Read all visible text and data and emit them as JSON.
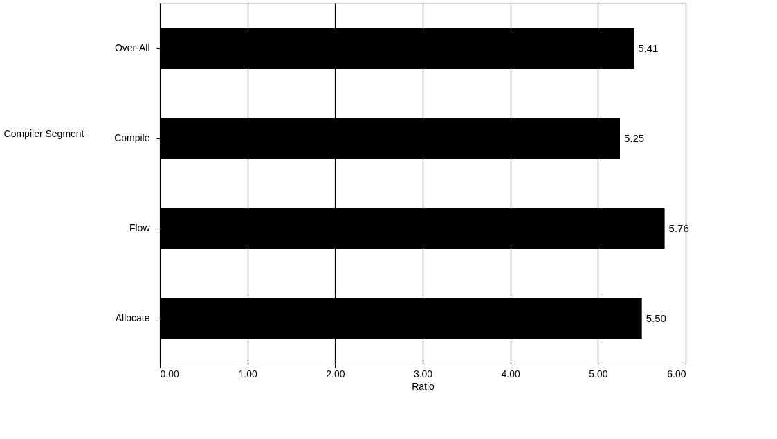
{
  "chart_data": {
    "type": "bar",
    "orientation": "horizontal",
    "xlabel": "Ratio",
    "ylabel": "Compiler Segment",
    "categories": [
      "Over-All",
      "Compile",
      "Flow",
      "Allocate"
    ],
    "values": [
      5.41,
      5.25,
      5.76,
      5.5
    ],
    "color": "#000000",
    "xlim": [
      0,
      6
    ],
    "xticks": [
      {
        "value": 0,
        "label": "0.00"
      },
      {
        "value": 1,
        "label": "1.00"
      },
      {
        "value": 2,
        "label": "2.00"
      },
      {
        "value": 3,
        "label": "3.00"
      },
      {
        "value": 4,
        "label": "4.00"
      },
      {
        "value": 5,
        "label": "5.00"
      },
      {
        "value": 6,
        "label": "6.00"
      }
    ],
    "value_labels": [
      "5.41",
      "5.25",
      "5.76",
      "5.50"
    ],
    "grid": "x"
  }
}
